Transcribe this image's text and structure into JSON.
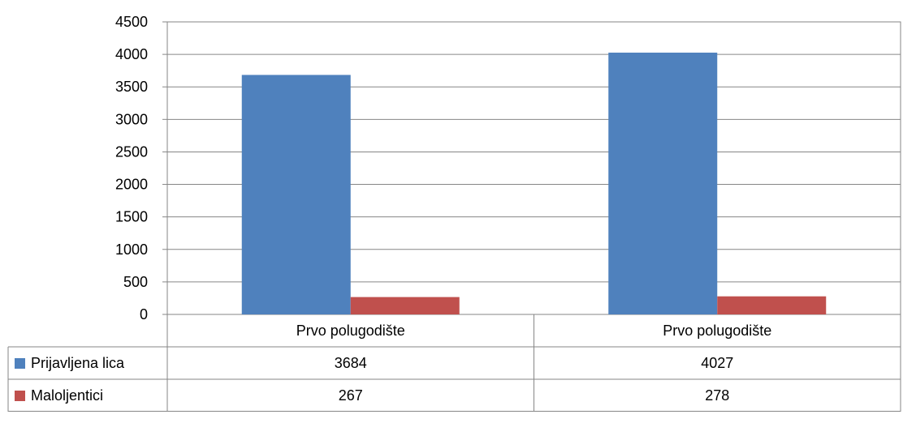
{
  "chart_data": {
    "type": "bar",
    "categories": [
      "Prvo polugodište",
      "Prvo polugodište"
    ],
    "series": [
      {
        "name": "Prijavljena lica",
        "values": [
          3684,
          4027
        ],
        "color": "#4F81BD"
      },
      {
        "name": "Maloljentici",
        "values": [
          267,
          278
        ],
        "color": "#C0504D"
      }
    ],
    "ylim": [
      0,
      4500
    ],
    "yticks": [
      "0",
      "500",
      "1000",
      "1500",
      "2000",
      "2500",
      "3000",
      "3500",
      "4000",
      "4500"
    ],
    "grid": true,
    "legend": "data-table-left"
  }
}
